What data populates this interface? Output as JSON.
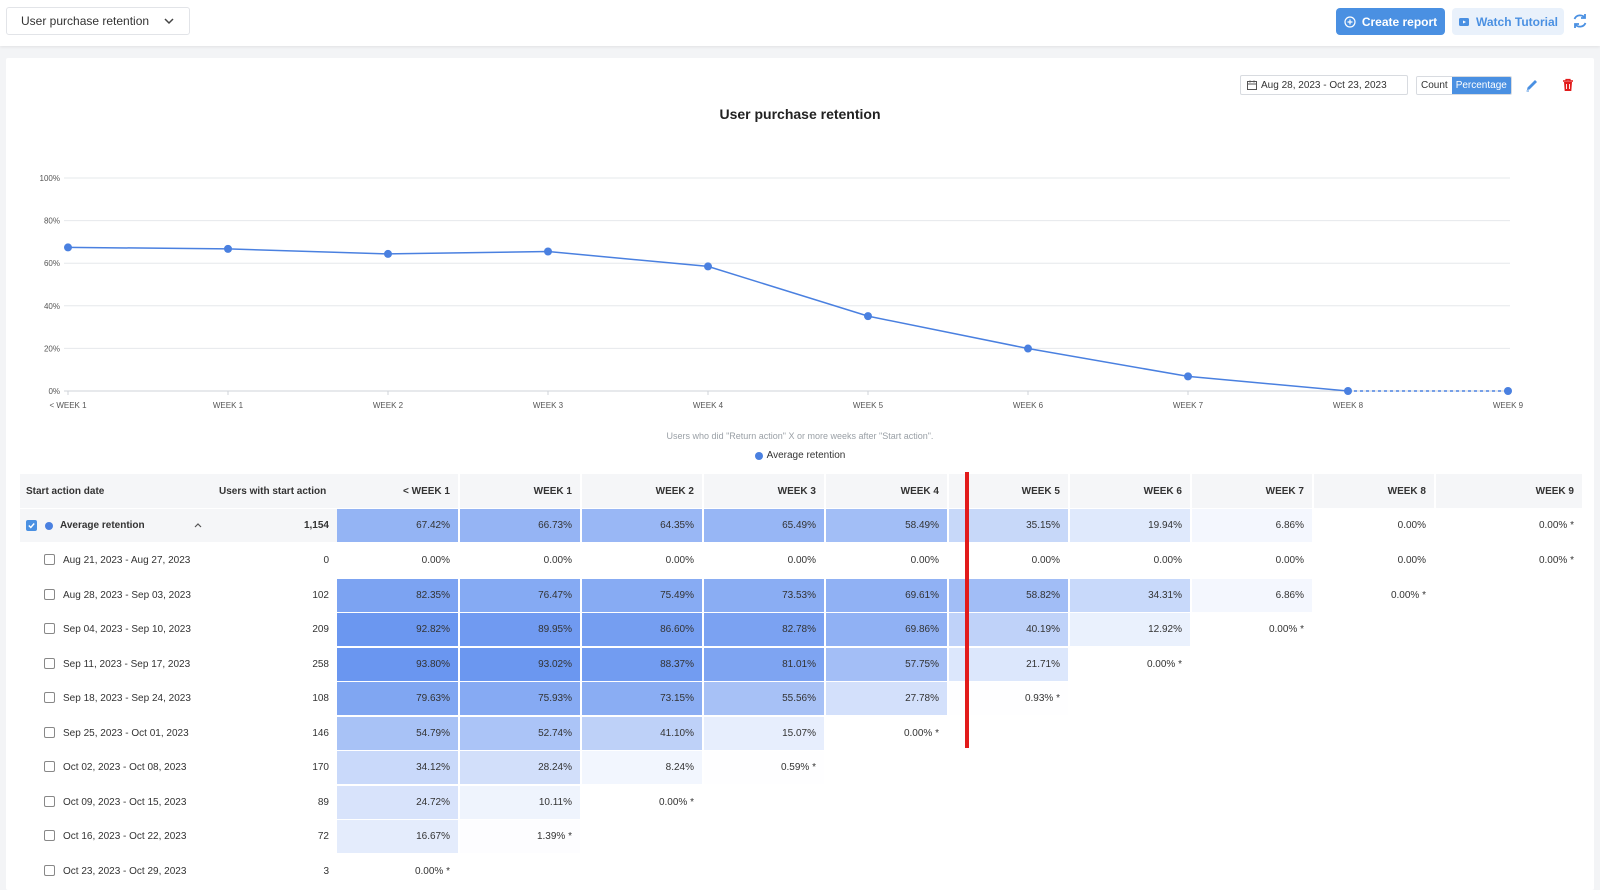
{
  "header": {
    "report_select": "User purchase retention",
    "create_report": "Create report",
    "watch_tutorial": "Watch Tutorial"
  },
  "controls": {
    "date_range": "Aug 28, 2023 - Oct 23, 2023",
    "toggle_count": "Count",
    "toggle_percentage": "Percentage",
    "selected_mode": "Percentage"
  },
  "chart_data": {
    "type": "line",
    "title": "User purchase retention",
    "caption": "Users who did \"Return action\" X or more weeks after \"Start action\".",
    "categories": [
      "< WEEK 1",
      "WEEK 1",
      "WEEK 2",
      "WEEK 3",
      "WEEK 4",
      "WEEK 5",
      "WEEK 6",
      "WEEK 7",
      "WEEK 8",
      "WEEK 9"
    ],
    "series": [
      {
        "name": "Average retention",
        "values": [
          67.42,
          66.73,
          64.35,
          65.49,
          58.49,
          35.15,
          19.94,
          6.86,
          0.0,
          0.0
        ],
        "color": "#4a80e0"
      }
    ],
    "yticks": [
      "0%",
      "20%",
      "40%",
      "60%",
      "80%",
      "100%"
    ],
    "ylim": [
      0,
      100
    ],
    "grid": true,
    "legend": "bottom-center"
  },
  "table": {
    "headers": {
      "date": "Start action date",
      "users": "Users with start action",
      "weeks": [
        "< WEEK 1",
        "WEEK 1",
        "WEEK 2",
        "WEEK 3",
        "WEEK 4",
        "WEEK 5",
        "WEEK 6",
        "WEEK 7",
        "WEEK 8",
        "WEEK 9"
      ]
    },
    "average": {
      "label": "Average retention",
      "users": "1,154",
      "values": [
        "67.42%",
        "66.73%",
        "64.35%",
        "65.49%",
        "58.49%",
        "35.15%",
        "19.94%",
        "6.86%",
        "0.00%",
        "0.00% *"
      ]
    },
    "rows": [
      {
        "label": "Aug 21, 2023 - Aug 27, 2023",
        "users": "0",
        "values": [
          "0.00%",
          "0.00%",
          "0.00%",
          "0.00%",
          "0.00%",
          "0.00%",
          "0.00%",
          "0.00%",
          "0.00%",
          "0.00% *"
        ]
      },
      {
        "label": "Aug 28, 2023 - Sep 03, 2023",
        "users": "102",
        "values": [
          "82.35%",
          "76.47%",
          "75.49%",
          "73.53%",
          "69.61%",
          "58.82%",
          "34.31%",
          "6.86%",
          "0.00% *"
        ]
      },
      {
        "label": "Sep 04, 2023 - Sep 10, 2023",
        "users": "209",
        "values": [
          "92.82%",
          "89.95%",
          "86.60%",
          "82.78%",
          "69.86%",
          "40.19%",
          "12.92%",
          "0.00% *"
        ]
      },
      {
        "label": "Sep 11, 2023 - Sep 17, 2023",
        "users": "258",
        "values": [
          "93.80%",
          "93.02%",
          "88.37%",
          "81.01%",
          "57.75%",
          "21.71%",
          "0.00% *"
        ]
      },
      {
        "label": "Sep 18, 2023 - Sep 24, 2023",
        "users": "108",
        "values": [
          "79.63%",
          "75.93%",
          "73.15%",
          "55.56%",
          "27.78%",
          "0.93% *"
        ]
      },
      {
        "label": "Sep 25, 2023 - Oct 01, 2023",
        "users": "146",
        "values": [
          "54.79%",
          "52.74%",
          "41.10%",
          "15.07%",
          "0.00% *"
        ]
      },
      {
        "label": "Oct 02, 2023 - Oct 08, 2023",
        "users": "170",
        "values": [
          "34.12%",
          "28.24%",
          "8.24%",
          "0.59% *"
        ]
      },
      {
        "label": "Oct 09, 2023 - Oct 15, 2023",
        "users": "89",
        "values": [
          "24.72%",
          "10.11%",
          "0.00% *"
        ]
      },
      {
        "label": "Oct 16, 2023 - Oct 22, 2023",
        "users": "72",
        "values": [
          "16.67%",
          "1.39% *"
        ]
      },
      {
        "label": "Oct 23, 2023 - Oct 29, 2023",
        "users": "3",
        "values": [
          "0.00% *"
        ]
      }
    ]
  },
  "colors": {
    "accent": "#4a90e2",
    "line": "#4a80e0",
    "marker": "#e21b1b"
  }
}
